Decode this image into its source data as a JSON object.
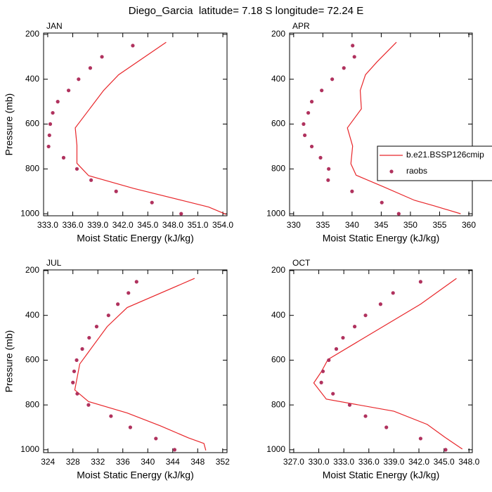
{
  "title": "Diego_Garcia  latitude= 7.18 S longitude= 72.24 E",
  "chart_data": [
    {
      "type": "line",
      "title": "JAN",
      "xlabel": "Moist Static Energy (kJ/kg)",
      "ylabel": "Pressure (mb)",
      "xlim": [
        332.5,
        354.5
      ],
      "ylim": [
        1009,
        194
      ],
      "xticks": [
        {
          "value": 333,
          "label": "333.0"
        },
        {
          "value": 336,
          "label": "336.0"
        },
        {
          "value": 339,
          "label": "339.0"
        },
        {
          "value": 342,
          "label": "342.0"
        },
        {
          "value": 345,
          "label": "345.0"
        },
        {
          "value": 348,
          "label": "348.0"
        },
        {
          "value": 351,
          "label": "351.0"
        },
        {
          "value": 354,
          "label": "354.0"
        }
      ],
      "yticks": [
        200,
        400,
        600,
        800,
        1000
      ],
      "series": [
        {
          "type": "line",
          "color": "#e8262a",
          "x": [
            347.2,
            341.5,
            339.7,
            336.3,
            336.5,
            336.5,
            337.9,
            343.3,
            349.6,
            352.3,
            354.4
          ],
          "y": [
            235,
            380,
            450,
            617,
            695,
            775,
            830,
            887,
            945,
            970,
            1003
          ]
        },
        {
          "type": "scatter",
          "color": "#b0325e",
          "x": [
            343.2,
            339.5,
            338.1,
            336.7,
            335.5,
            334.2,
            333.6,
            333.3,
            333.2,
            333.1,
            334.9,
            336.5,
            338.2,
            341.2,
            345.5,
            349.0
          ],
          "y": [
            250,
            300,
            350,
            400,
            450,
            500,
            550,
            600,
            650,
            700,
            750,
            800,
            850,
            900,
            950,
            1000
          ]
        }
      ]
    },
    {
      "type": "line",
      "title": "APR",
      "xlabel": "Moist Static Energy (kJ/kg)",
      "xlim": [
        329.3,
        360.6
      ],
      "ylim": [
        1009,
        194
      ],
      "xticks": [
        330,
        335,
        340,
        345,
        350,
        355,
        360
      ],
      "yticks": [
        200,
        400,
        600,
        800,
        1000
      ],
      "legend": "right",
      "series": [
        {
          "type": "line",
          "name": "b.e21.BSSP126cmip",
          "color": "#e8262a",
          "x": [
            347.6,
            344.3,
            342.3,
            341.4,
            341.6,
            339.2,
            340.1,
            339.8,
            340.7,
            345.4,
            350.7,
            354.1,
            358.6
          ],
          "y": [
            235,
            322,
            380,
            450,
            532,
            617,
            698,
            777,
            828,
            880,
            940,
            965,
            1000
          ]
        },
        {
          "type": "scatter",
          "name": "raobs",
          "color": "#b0325e",
          "x": [
            340.1,
            340.4,
            338.6,
            336.6,
            334.8,
            333.1,
            332.5,
            331.7,
            331.9,
            333.1,
            334.6,
            336.0,
            335.9,
            340.0,
            345.1,
            348.0
          ],
          "y": [
            250,
            300,
            350,
            400,
            450,
            500,
            550,
            600,
            650,
            700,
            750,
            800,
            850,
            900,
            950,
            1000
          ]
        }
      ]
    },
    {
      "type": "line",
      "title": "JUL",
      "xlabel": "Moist Static Energy (kJ/kg)",
      "ylabel": "Pressure (mb)",
      "xlim": [
        323.3,
        352.7
      ],
      "ylim": [
        1013,
        197
      ],
      "xticks": [
        324,
        328,
        332,
        336,
        340,
        344,
        348,
        352
      ],
      "yticks": [
        200,
        400,
        600,
        800,
        1000
      ],
      "series": [
        {
          "type": "line",
          "color": "#e8262a",
          "x": [
            347.5,
            336.7,
            333.5,
            329.1,
            328.3,
            330.5,
            336.7,
            342.0,
            346.5,
            349.0,
            349.3
          ],
          "y": [
            235,
            365,
            450,
            617,
            733,
            785,
            836,
            893,
            947,
            972,
            1003
          ]
        },
        {
          "type": "scatter",
          "color": "#b0325e",
          "x": [
            338.2,
            336.9,
            335.2,
            333.7,
            331.8,
            330.6,
            329.5,
            328.6,
            328.2,
            328.0,
            328.7,
            330.5,
            334.1,
            337.2,
            341.3,
            344.3
          ],
          "y": [
            250,
            300,
            350,
            400,
            450,
            500,
            550,
            600,
            650,
            700,
            750,
            800,
            850,
            900,
            950,
            1000
          ]
        }
      ]
    },
    {
      "type": "line",
      "title": "OCT",
      "xlabel": "Moist Static Energy (kJ/kg)",
      "xlim": [
        326.5,
        348.4
      ],
      "ylim": [
        1013,
        197
      ],
      "xticks": [
        {
          "value": 327,
          "label": "327.0"
        },
        {
          "value": 330,
          "label": "330.0"
        },
        {
          "value": 333,
          "label": "333.0"
        },
        {
          "value": 336,
          "label": "336.0"
        },
        {
          "value": 339,
          "label": "339.0"
        },
        {
          "value": 342,
          "label": "342.0"
        },
        {
          "value": 345,
          "label": "345.0"
        },
        {
          "value": 348,
          "label": "348.0"
        }
      ],
      "yticks": [
        200,
        400,
        600,
        800,
        1000
      ],
      "series": [
        {
          "type": "line",
          "color": "#e8262a",
          "x": [
            346.5,
            342.2,
            331.1,
            330.3,
            329.4,
            330.9,
            339.0,
            343.0,
            345.1,
            347.2
          ],
          "y": [
            235,
            350,
            597,
            652,
            702,
            774,
            828,
            887,
            944,
            997
          ]
        },
        {
          "type": "scatter",
          "color": "#b0325e",
          "x": [
            342.2,
            338.9,
            337.4,
            335.6,
            334.3,
            332.9,
            332.1,
            331.2,
            330.5,
            330.3,
            331.7,
            333.7,
            335.6,
            338.1,
            342.2,
            345.2
          ],
          "y": [
            250,
            300,
            350,
            400,
            450,
            500,
            550,
            600,
            650,
            700,
            750,
            800,
            850,
            900,
            950,
            1000
          ]
        }
      ]
    }
  ]
}
